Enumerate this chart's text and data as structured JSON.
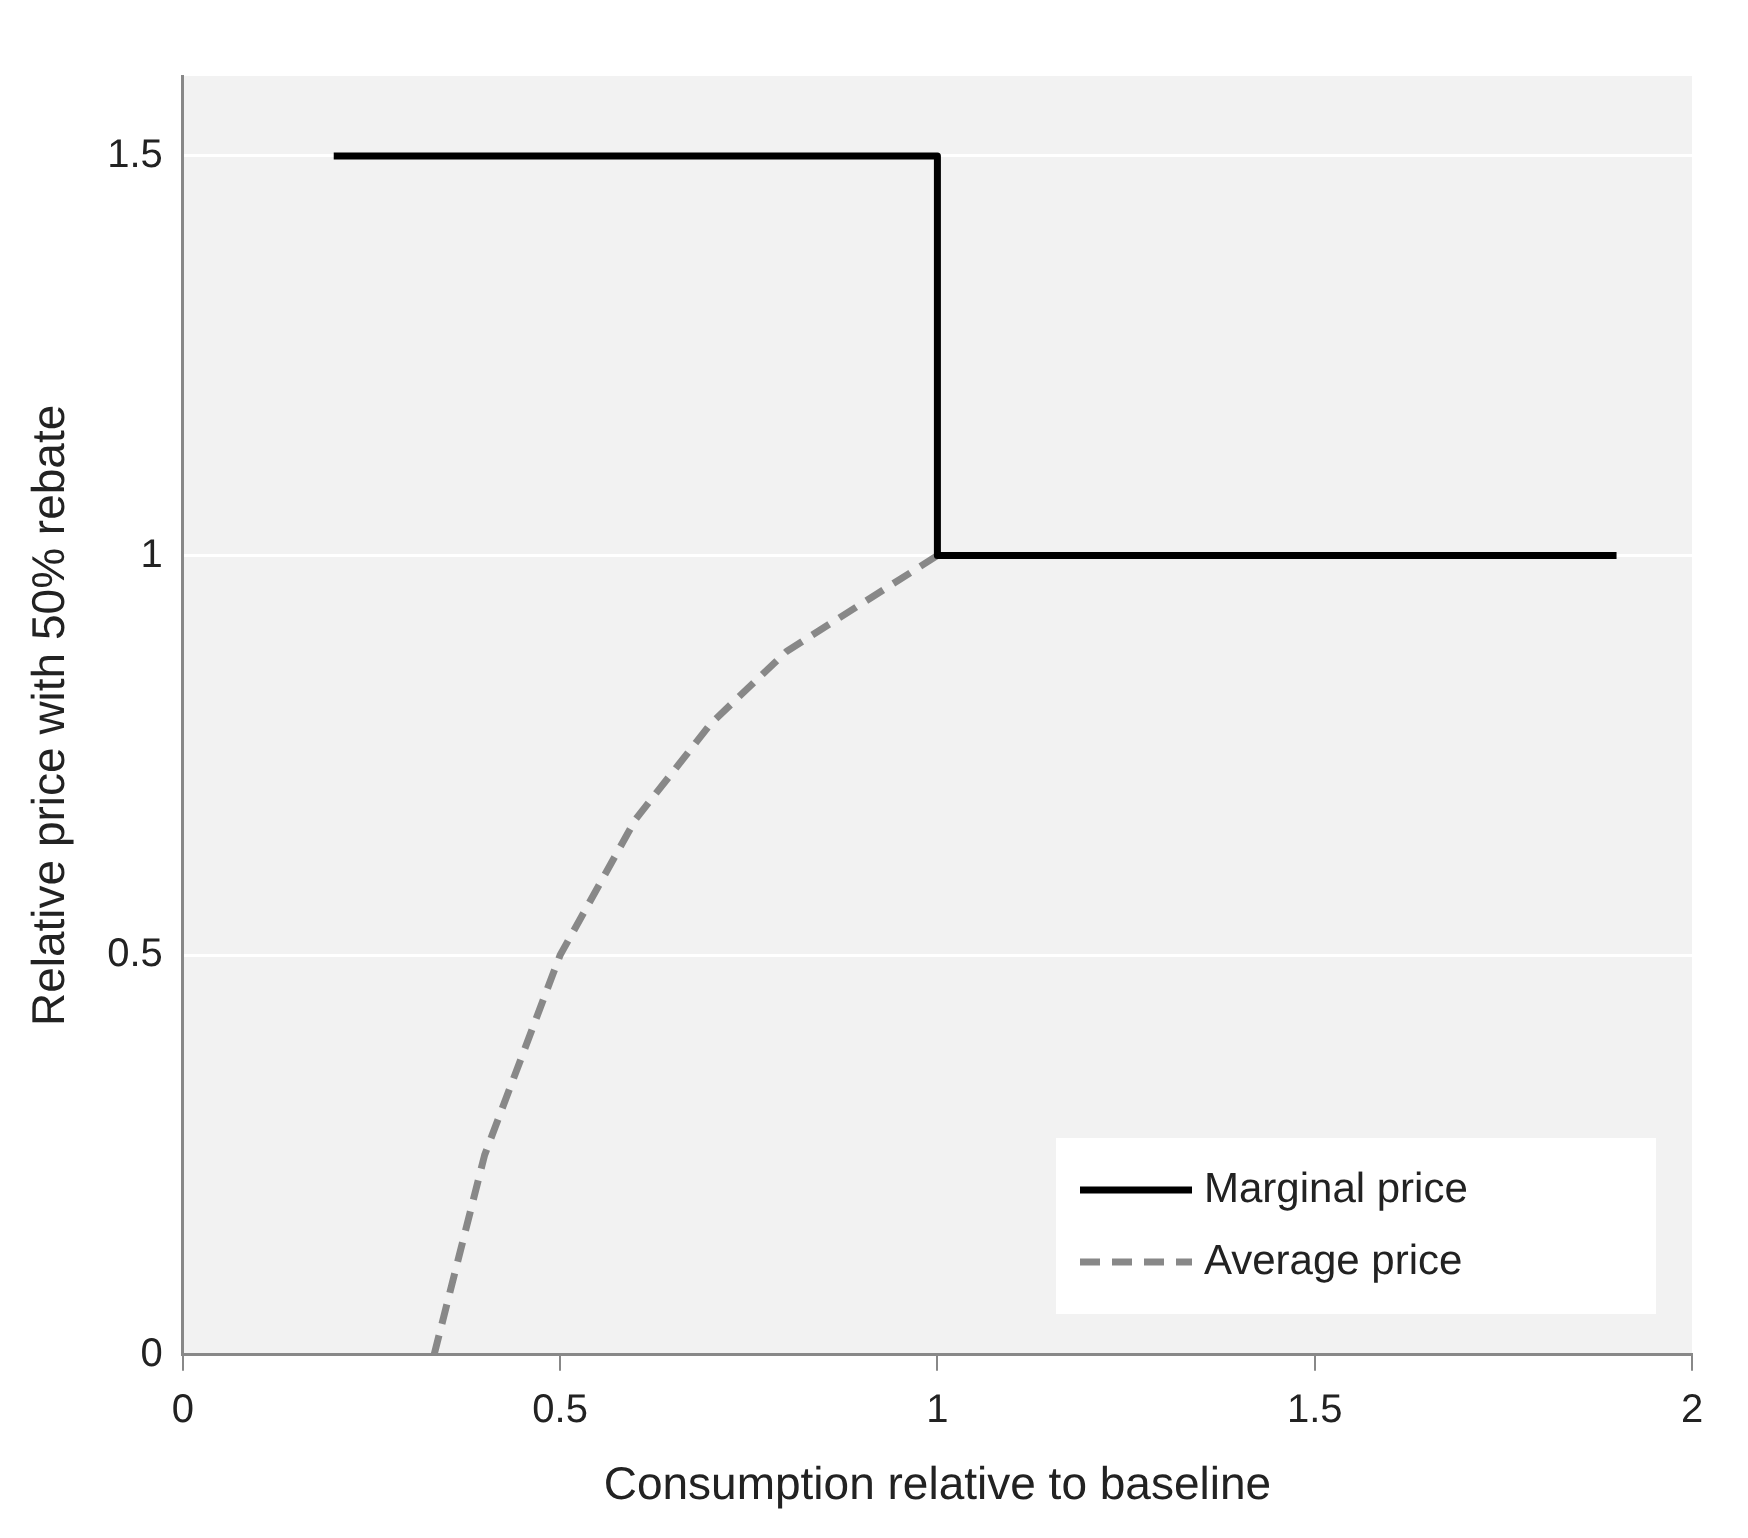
{
  "chart_data": {
    "type": "line",
    "xlabel": "Consumption relative to baseline",
    "ylabel": "Relative price with 50% rebate",
    "xlim": [
      0,
      2
    ],
    "ylim": [
      0,
      1.6
    ],
    "xticks": [
      0,
      0.5,
      1,
      1.5,
      2
    ],
    "yticks": [
      0,
      0.5,
      1,
      1.5
    ],
    "grid": "y",
    "legend": "bottom right",
    "marker": "none",
    "series": [
      {
        "name": "Marginal price",
        "color": "#000000",
        "line_style": "solid",
        "x": [
          0.2,
          1,
          1,
          1.9
        ],
        "values": [
          1.5,
          1.5,
          1,
          1
        ]
      },
      {
        "name": "Average price",
        "color": "#888888",
        "line_style": "dashed",
        "x": [
          0.333,
          0.4,
          0.5,
          0.6,
          0.7,
          0.8,
          0.9,
          1,
          1.9
        ],
        "values": [
          0,
          0.25,
          0.5,
          0.67,
          0.79,
          0.88,
          0.94,
          1,
          1
        ]
      }
    ]
  }
}
